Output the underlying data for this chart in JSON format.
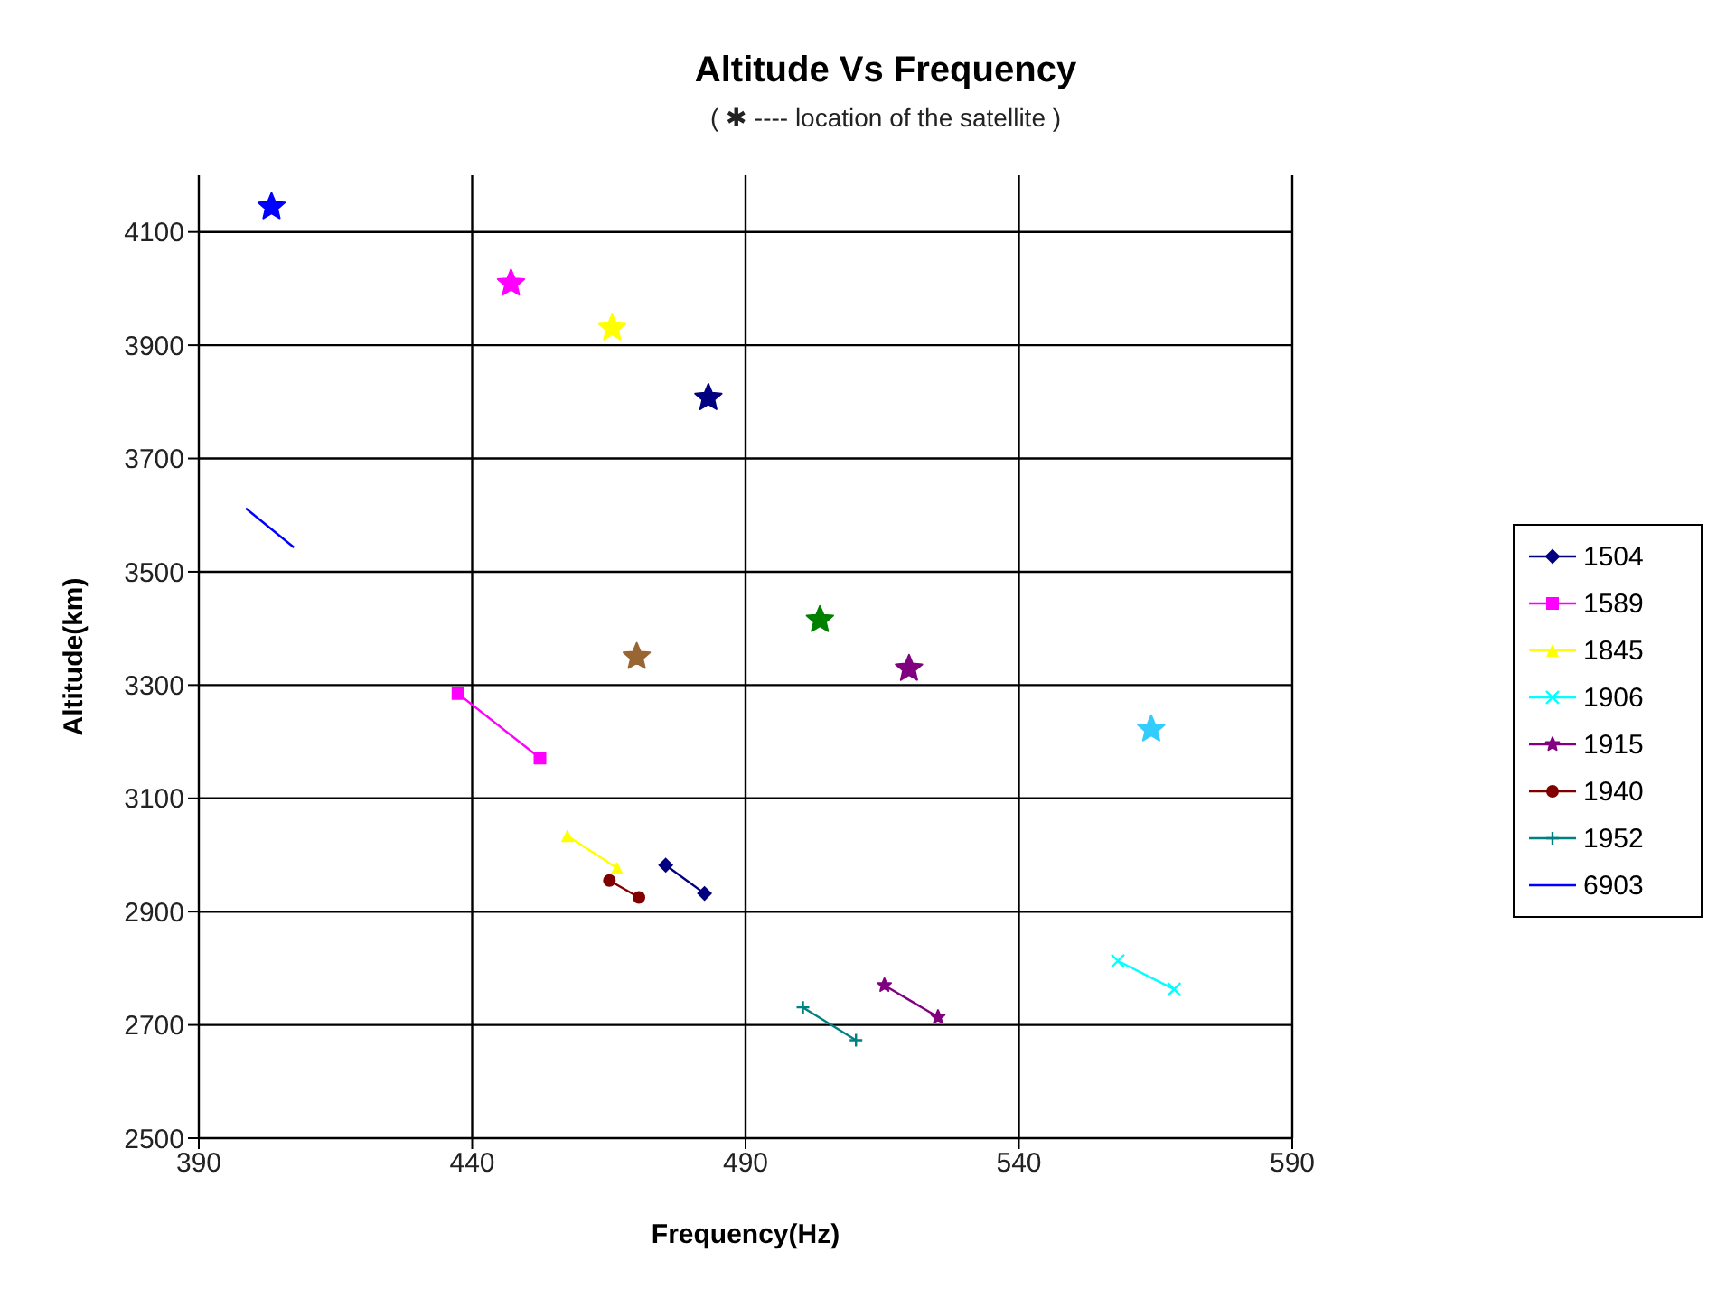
{
  "chart_data": {
    "type": "line",
    "title": "Altitude Vs Frequency",
    "subtitle": "( ✱ ---- location of the satellite )",
    "xlabel": "Frequency(Hz)",
    "ylabel": "Altitude(km)",
    "xlim": [
      390,
      590
    ],
    "xticks": [
      390,
      440,
      490,
      540,
      590
    ],
    "ylim": [
      2500,
      4200
    ],
    "yticks": [
      2500,
      2700,
      2900,
      3100,
      3300,
      3500,
      3700,
      3900,
      4100
    ],
    "grid": true,
    "legend": "right",
    "series": [
      {
        "name": "1504",
        "color": "#000080",
        "marker": "diamond",
        "x": [
          475.4,
          482.5
        ],
        "values": [
          2982,
          2932
        ]
      },
      {
        "name": "1589",
        "color": "#ff00ff",
        "marker": "square",
        "x": [
          437.4,
          452.4
        ],
        "values": [
          3285,
          3171
        ]
      },
      {
        "name": "1845",
        "color": "#ffff00",
        "marker": "triangle",
        "x": [
          457.4,
          466.5
        ],
        "values": [
          3034,
          2977
        ]
      },
      {
        "name": "1906",
        "color": "#00ffff",
        "marker": "cross",
        "x": [
          558.1,
          568.4
        ],
        "values": [
          2813,
          2763
        ]
      },
      {
        "name": "1915",
        "color": "#800080",
        "marker": "star",
        "x": [
          515.4,
          525.2
        ],
        "values": [
          2770,
          2714
        ]
      },
      {
        "name": "1940",
        "color": "#800000",
        "marker": "circle",
        "x": [
          465.1,
          470.5
        ],
        "values": [
          2955,
          2925
        ]
      },
      {
        "name": "1952",
        "color": "#008080",
        "marker": "plus",
        "x": [
          500.5,
          510.2
        ],
        "values": [
          2731,
          2673
        ]
      },
      {
        "name": "6903",
        "color": "#0000ff",
        "marker": "none",
        "x": [
          398.6,
          407.4
        ],
        "values": [
          3612,
          3543
        ]
      },
      {
        "type": "scatter",
        "marker": "star",
        "x": [
          403.3,
          447.1,
          465.6,
          483.2,
          470.1,
          503.6,
          519.9,
          564.2
        ],
        "values": [
          4144,
          4009,
          3930,
          3807,
          3350,
          3415,
          3329,
          3222
        ],
        "colors": [
          "#0000ff",
          "#ff00ff",
          "#ffff00",
          "#000080",
          "#996633",
          "#008000",
          "#800080",
          "#33ccff"
        ]
      }
    ]
  }
}
